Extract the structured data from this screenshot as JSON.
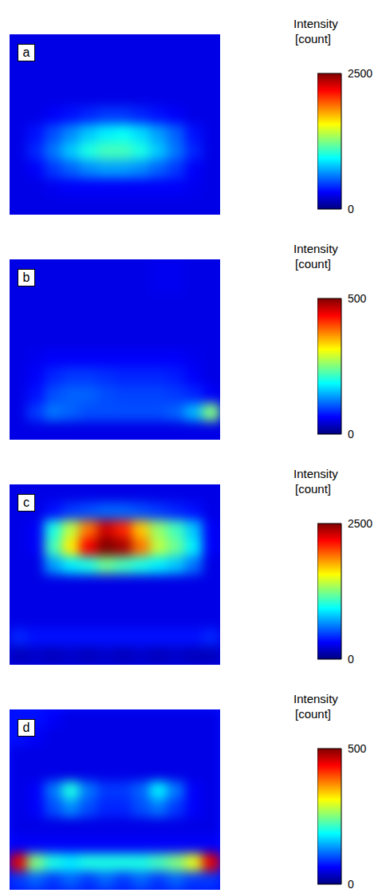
{
  "chart_data": [
    {
      "type": "heatmap",
      "label": "a",
      "tick_labels": false,
      "colorbar_title": "Intensity [count]",
      "colorbar_range": [
        0,
        2500
      ],
      "colorbar_ticks": [
        0,
        2500
      ],
      "cells": [
        [
          250,
          250,
          250,
          250,
          250,
          250,
          250,
          250,
          250,
          250,
          250,
          250
        ],
        [
          250,
          250,
          250,
          250,
          250,
          250,
          250,
          250,
          250,
          250,
          250,
          250
        ],
        [
          250,
          250,
          250,
          250,
          250,
          250,
          250,
          250,
          250,
          250,
          250,
          250
        ],
        [
          250,
          250,
          250,
          250,
          250,
          250,
          250,
          250,
          250,
          250,
          250,
          250
        ],
        [
          250,
          250,
          300,
          350,
          400,
          450,
          450,
          400,
          350,
          300,
          250,
          250
        ],
        [
          250,
          350,
          500,
          650,
          800,
          900,
          950,
          850,
          700,
          550,
          350,
          250
        ],
        [
          250,
          400,
          600,
          800,
          1000,
          1100,
          1100,
          1000,
          800,
          600,
          400,
          250
        ],
        [
          250,
          300,
          450,
          550,
          650,
          700,
          700,
          650,
          550,
          450,
          300,
          250
        ],
        [
          250,
          250,
          280,
          300,
          300,
          300,
          300,
          300,
          300,
          300,
          280,
          250
        ],
        [
          250,
          250,
          250,
          250,
          250,
          250,
          250,
          250,
          250,
          250,
          250,
          250
        ]
      ]
    },
    {
      "type": "heatmap",
      "label": "b",
      "tick_labels": false,
      "colorbar_title": "Intensity [count]",
      "colorbar_range": [
        0,
        500
      ],
      "colorbar_ticks": [
        0,
        500
      ],
      "cells": [
        [
          50,
          50,
          50,
          50,
          50,
          50,
          50,
          50,
          55,
          55,
          50,
          50
        ],
        [
          50,
          50,
          50,
          50,
          50,
          50,
          50,
          50,
          55,
          55,
          50,
          50
        ],
        [
          50,
          50,
          50,
          50,
          50,
          50,
          50,
          50,
          50,
          50,
          50,
          50
        ],
        [
          50,
          50,
          50,
          50,
          50,
          50,
          50,
          50,
          50,
          50,
          50,
          50
        ],
        [
          50,
          50,
          50,
          50,
          50,
          50,
          50,
          50,
          50,
          50,
          50,
          50
        ],
        [
          50,
          55,
          60,
          60,
          60,
          60,
          60,
          60,
          60,
          60,
          55,
          50
        ],
        [
          50,
          60,
          80,
          90,
          90,
          85,
          80,
          80,
          80,
          75,
          60,
          50
        ],
        [
          50,
          70,
          100,
          110,
          110,
          100,
          95,
          95,
          95,
          90,
          80,
          60
        ],
        [
          50,
          90,
          120,
          110,
          100,
          100,
          100,
          100,
          100,
          110,
          150,
          250
        ],
        [
          50,
          50,
          50,
          50,
          50,
          50,
          50,
          50,
          50,
          50,
          50,
          50
        ]
      ]
    },
    {
      "type": "heatmap",
      "label": "c",
      "tick_labels": false,
      "colorbar_title": "Intensity [count]",
      "colorbar_range": [
        0,
        2500
      ],
      "colorbar_ticks": [
        0,
        2500
      ],
      "cells": [
        [
          250,
          250,
          250,
          250,
          250,
          250,
          250,
          250,
          250,
          250,
          250,
          250
        ],
        [
          250,
          250,
          350,
          450,
          500,
          550,
          550,
          500,
          450,
          400,
          350,
          250
        ],
        [
          250,
          300,
          1000,
          1400,
          1900,
          2300,
          2100,
          1700,
          1300,
          1100,
          800,
          300
        ],
        [
          250,
          300,
          1100,
          1600,
          2200,
          2500,
          2400,
          1900,
          1400,
          1200,
          900,
          300
        ],
        [
          250,
          250,
          700,
          900,
          1000,
          1200,
          1100,
          1000,
          900,
          800,
          600,
          250
        ],
        [
          250,
          250,
          250,
          250,
          250,
          250,
          250,
          250,
          250,
          250,
          250,
          250
        ],
        [
          250,
          250,
          250,
          250,
          250,
          250,
          250,
          250,
          250,
          250,
          250,
          250
        ],
        [
          250,
          250,
          250,
          250,
          250,
          250,
          250,
          250,
          250,
          250,
          250,
          250
        ],
        [
          400,
          350,
          350,
          350,
          350,
          350,
          350,
          350,
          350,
          350,
          350,
          400
        ],
        [
          150,
          180,
          150,
          180,
          150,
          180,
          150,
          180,
          150,
          180,
          150,
          150
        ]
      ]
    },
    {
      "type": "heatmap",
      "label": "d",
      "tick_labels": false,
      "colorbar_title": "Intensity [count]",
      "colorbar_range": [
        0,
        500
      ],
      "colorbar_ticks": [
        0,
        500
      ],
      "cells": [
        [
          70,
          70,
          60,
          50,
          50,
          50,
          50,
          50,
          50,
          50,
          50,
          50
        ],
        [
          70,
          60,
          50,
          50,
          50,
          50,
          50,
          50,
          50,
          50,
          50,
          50
        ],
        [
          50,
          50,
          50,
          50,
          50,
          50,
          50,
          50,
          50,
          50,
          50,
          50
        ],
        [
          50,
          50,
          50,
          50,
          50,
          50,
          50,
          50,
          50,
          50,
          50,
          50
        ],
        [
          50,
          60,
          120,
          200,
          120,
          90,
          90,
          110,
          180,
          120,
          60,
          50
        ],
        [
          50,
          60,
          100,
          130,
          100,
          80,
          80,
          100,
          120,
          90,
          60,
          50
        ],
        [
          50,
          50,
          50,
          50,
          50,
          50,
          50,
          50,
          50,
          50,
          50,
          50
        ],
        [
          60,
          60,
          60,
          60,
          60,
          60,
          60,
          60,
          60,
          60,
          60,
          60
        ],
        [
          450,
          250,
          200,
          180,
          200,
          200,
          200,
          200,
          220,
          250,
          300,
          450
        ],
        [
          90,
          110,
          90,
          110,
          90,
          110,
          90,
          110,
          90,
          110,
          90,
          90
        ]
      ]
    }
  ]
}
